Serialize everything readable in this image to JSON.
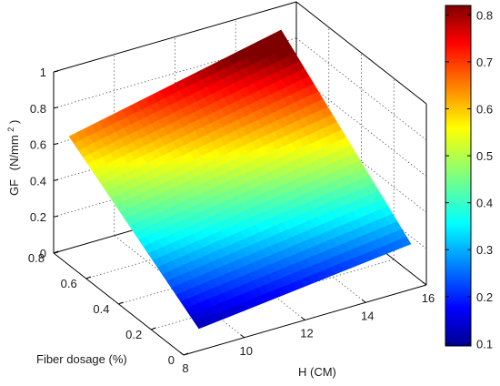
{
  "chart_data": {
    "type": "surface",
    "title": "",
    "xlabel": "H (CM)",
    "ylabel": "Fiber dosage (%)",
    "zlabel_main": "GF",
    "zlabel_unit": "(N/mm",
    "zlabel_sup": "2",
    "zlabel_close": ")",
    "xlim": [
      8,
      16
    ],
    "ylim": [
      0,
      0.8
    ],
    "zlim": [
      0,
      1
    ],
    "xticks": [
      "8",
      "10",
      "12",
      "14",
      "16"
    ],
    "yticks": [
      "0",
      "0.2",
      "0.4",
      "0.6",
      "0.8"
    ],
    "zticks": [
      "0",
      "0.2",
      "0.4",
      "0.6",
      "0.8",
      "1"
    ],
    "grid": true,
    "colormap": "jet",
    "colorbar": {
      "position": "right",
      "range": [
        0.1,
        0.8
      ],
      "ticks": [
        "0.1",
        "0.2",
        "0.3",
        "0.4",
        "0.5",
        "0.6",
        "0.7",
        "0.8"
      ]
    },
    "surface_corners": [
      {
        "x": 8.5,
        "y": 0,
        "z": 0.12
      },
      {
        "x": 15.5,
        "y": 0,
        "z": 0.25
      },
      {
        "x": 8.5,
        "y": 0.8,
        "z": 0.62
      },
      {
        "x": 15.5,
        "y": 0.8,
        "z": 0.87
      }
    ]
  }
}
